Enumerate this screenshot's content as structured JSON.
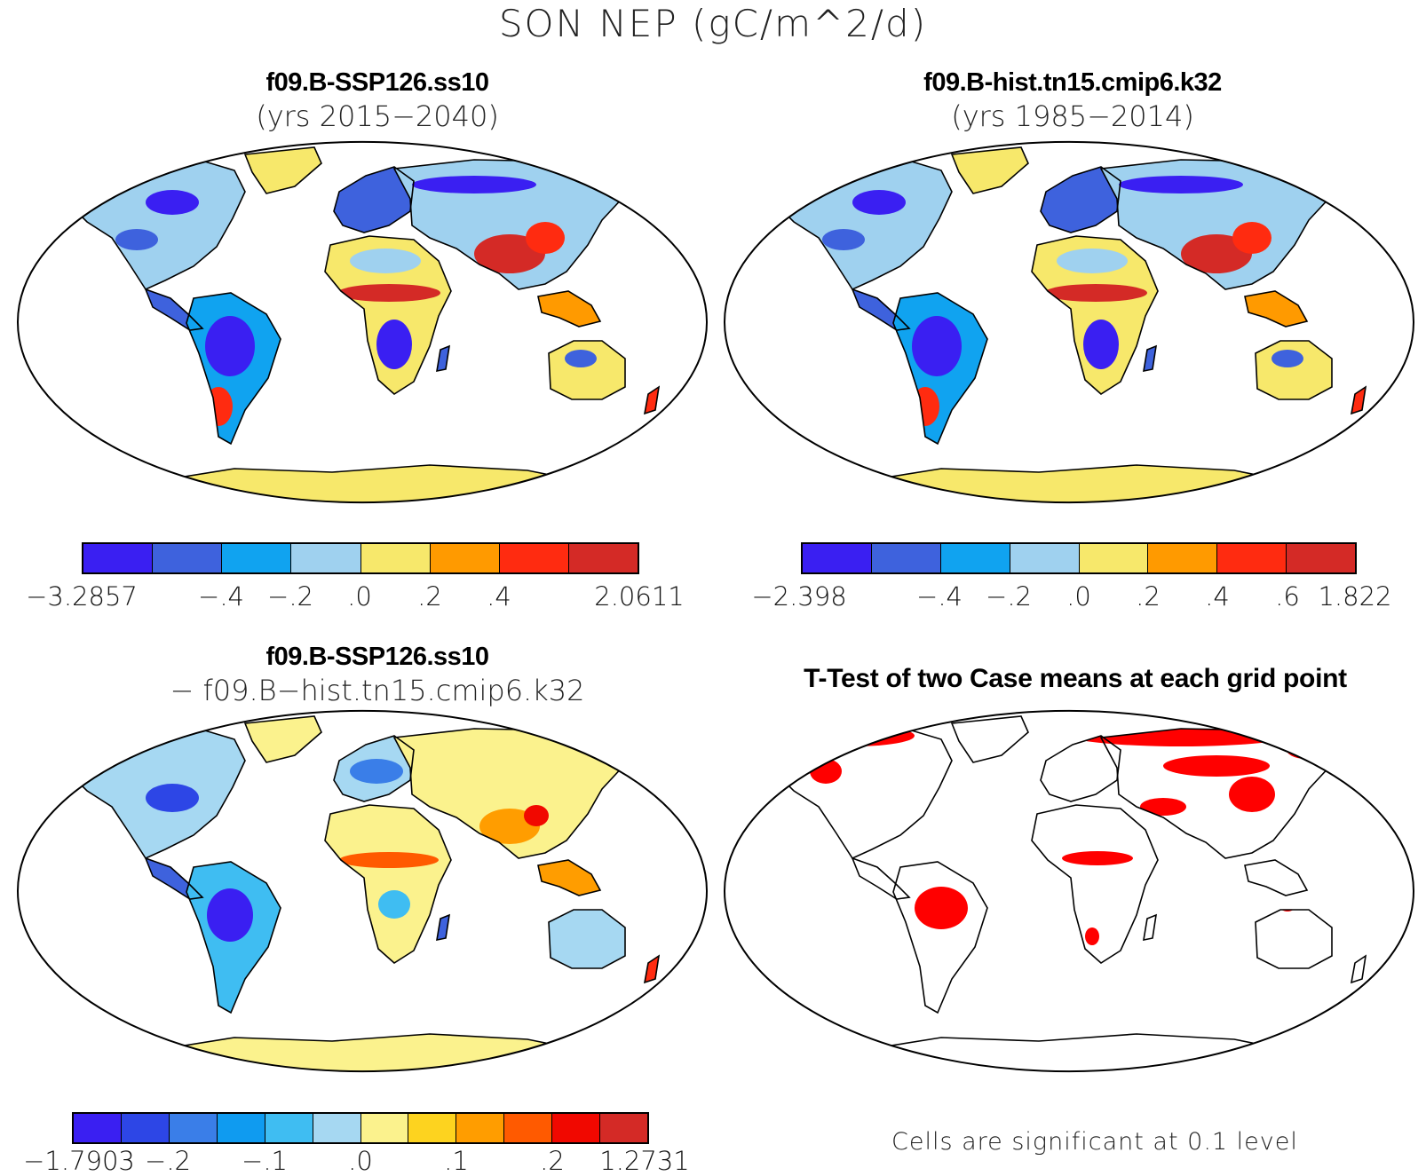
{
  "figure_title": "SON NEP (gC/m^2/d)",
  "panels": {
    "top_left": {
      "case": "f09.B-SSP126.ss10",
      "years": "(yrs 2015−2040)",
      "colors": [
        "#3a1ff2",
        "#3e62dd",
        "#10a3f0",
        "#9fd1ef",
        "#f7e86b",
        "#ff9a00",
        "#ff2b10",
        "#d42a26"
      ],
      "ticks": [
        "−3.2857",
        "−.4",
        "−.2",
        ".0",
        ".2",
        ".4",
        "2.0611"
      ]
    },
    "top_right": {
      "case": "f09.B-hist.tn15.cmip6.k32",
      "years": "(yrs 1985−2014)",
      "colors": [
        "#3a1ff2",
        "#3e62dd",
        "#10a3f0",
        "#9fd1ef",
        "#f7e86b",
        "#ff9a00",
        "#ff2b10",
        "#d42a26"
      ],
      "ticks": [
        "−2.398",
        "−.4",
        "−.2",
        ".0",
        ".2",
        ".4",
        ".6",
        "1.822"
      ]
    },
    "bottom_left": {
      "case": "f09.B-SSP126.ss10",
      "minus_case": "− f09.B−hist.tn15.cmip6.k32",
      "colors": [
        "#3a1ff2",
        "#2d46e6",
        "#3a7ee8",
        "#0f9bf0",
        "#3fbdf2",
        "#a6d8f2",
        "#fbf28d",
        "#fdd31f",
        "#ff9d00",
        "#ff5a00",
        "#f10800",
        "#d42a26"
      ],
      "ticks": [
        "−1.7903",
        "−.2",
        "−.1",
        ".0",
        ".1",
        ".2",
        "1.2731"
      ]
    },
    "bottom_right": {
      "title": "T-Test of two Case means at each grid point",
      "note": "Cells are significant at 0.1 level",
      "significant_color": "#ff0000"
    }
  }
}
